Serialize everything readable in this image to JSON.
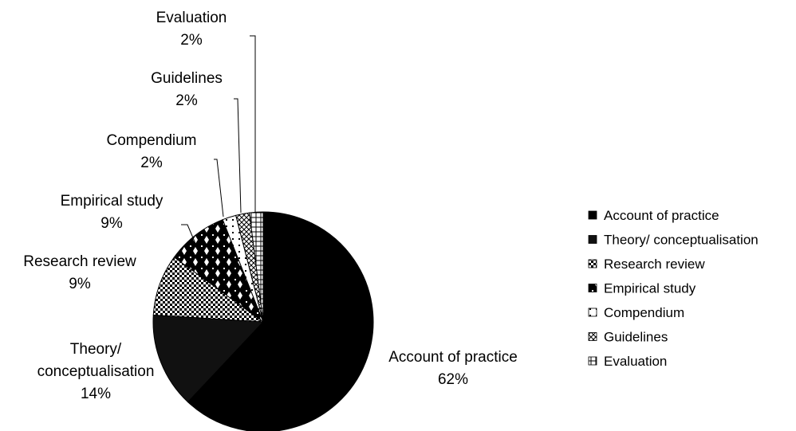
{
  "chart_data": {
    "type": "pie",
    "title": "",
    "slices": [
      {
        "label": "Account of practice",
        "value": 62,
        "value_label": "62%",
        "fill": "#000000",
        "pattern": "solid"
      },
      {
        "label": "Theory/ conceptualisation",
        "label_lines": [
          "Theory/",
          "conceptualisation"
        ],
        "value": 14,
        "value_label": "14%",
        "fill": "#111111",
        "pattern": "solid-dark"
      },
      {
        "label": "Research review",
        "value": 9,
        "value_label": "9%",
        "fill": "#ffffff",
        "pattern": "checker"
      },
      {
        "label": "Empirical study",
        "value": 9,
        "value_label": "9%",
        "fill": "#000000",
        "pattern": "diamond"
      },
      {
        "label": "Compendium",
        "value": 2,
        "value_label": "2%",
        "fill": "#ffffff",
        "pattern": "dots"
      },
      {
        "label": "Guidelines",
        "value": 2,
        "value_label": "2%",
        "fill": "#ffffff",
        "pattern": "crosshatch"
      },
      {
        "label": "Evaluation",
        "value": 2,
        "value_label": "2%",
        "fill": "#ffffff",
        "pattern": "grid"
      }
    ],
    "legend": {
      "placement": "right",
      "items": [
        "Account of practice",
        "Theory/ conceptualisation",
        "Research review",
        "Empirical study",
        "Compendium",
        "Guidelines",
        "Evaluation"
      ]
    }
  }
}
